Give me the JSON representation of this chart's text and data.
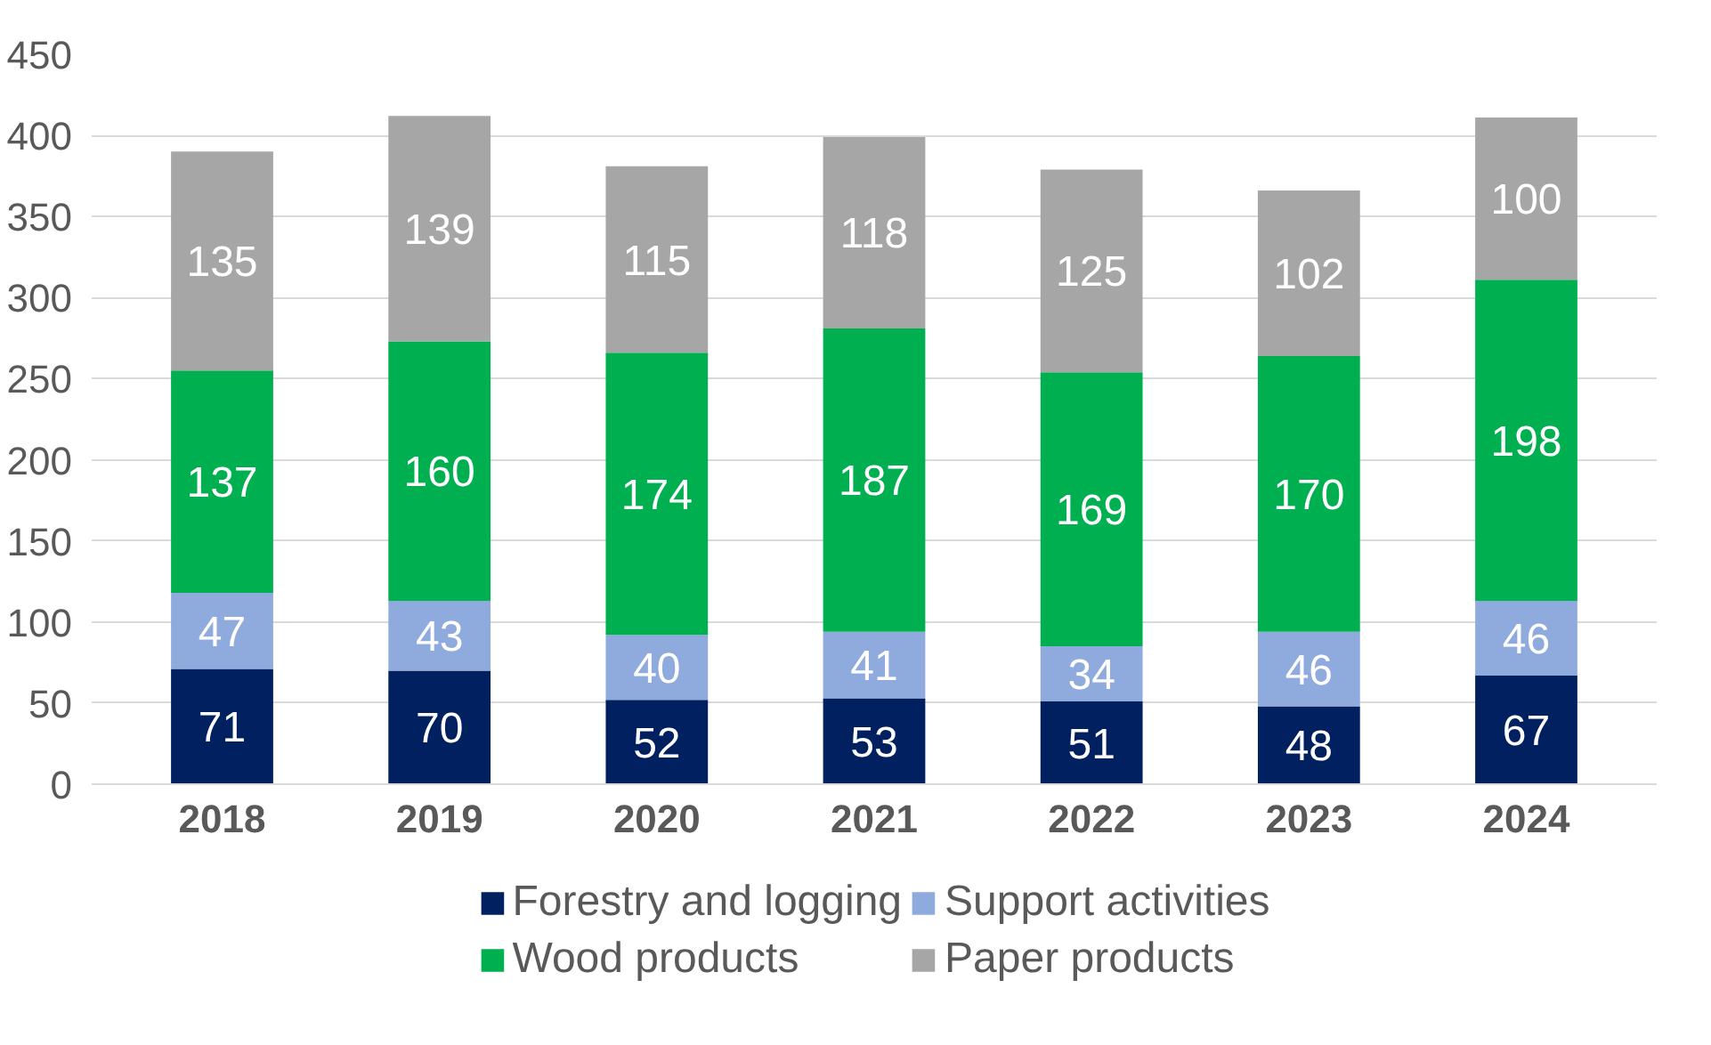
{
  "chart_data": {
    "type": "bar",
    "stacked": true,
    "categories": [
      "2018",
      "2019",
      "2020",
      "2021",
      "2022",
      "2023",
      "2024"
    ],
    "series": [
      {
        "name": "Forestry and logging",
        "color": "#002060",
        "values": [
          71,
          70,
          52,
          53,
          51,
          48,
          67
        ]
      },
      {
        "name": "Support activities",
        "color": "#8faadc",
        "values": [
          47,
          43,
          40,
          41,
          34,
          46,
          46
        ]
      },
      {
        "name": "Wood products",
        "color": "#00b050",
        "values": [
          137,
          160,
          174,
          187,
          169,
          170,
          198
        ]
      },
      {
        "name": "Paper products",
        "color": "#a6a6a6",
        "values": [
          135,
          139,
          115,
          118,
          125,
          102,
          100
        ]
      }
    ],
    "ylim": [
      0,
      450
    ],
    "yticks": [
      0,
      50,
      100,
      150,
      200,
      250,
      300,
      350,
      400,
      450
    ],
    "grid": "y",
    "legend": "bottom",
    "data_labels": true
  }
}
